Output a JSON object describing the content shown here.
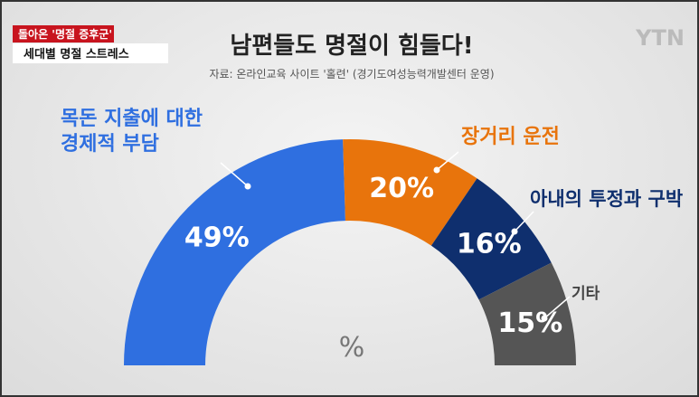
{
  "header": {
    "badge": "돌아온 '명절 증후군'",
    "subtitle_box": "세대별 명절 스트레스",
    "logo": "YTN"
  },
  "chart_data": {
    "type": "semi-donut",
    "title": "남편들도 명절이 힘들다!",
    "subtitle": "자료: 온라인교육 사이트 '홀련' (경기도여성능력개발센터 운영)",
    "center_label": "%",
    "categories": [
      "목돈 지출에 대한\n경제적 부담",
      "장거리 운전",
      "아내의 투정과 구박",
      "기타"
    ],
    "values": [
      49,
      20,
      16,
      15
    ],
    "value_labels": [
      "49%",
      "20%",
      "16%",
      "15%"
    ],
    "colors": [
      "#2f6fe0",
      "#e8740c",
      "#0f2f6e",
      "#555555"
    ]
  }
}
